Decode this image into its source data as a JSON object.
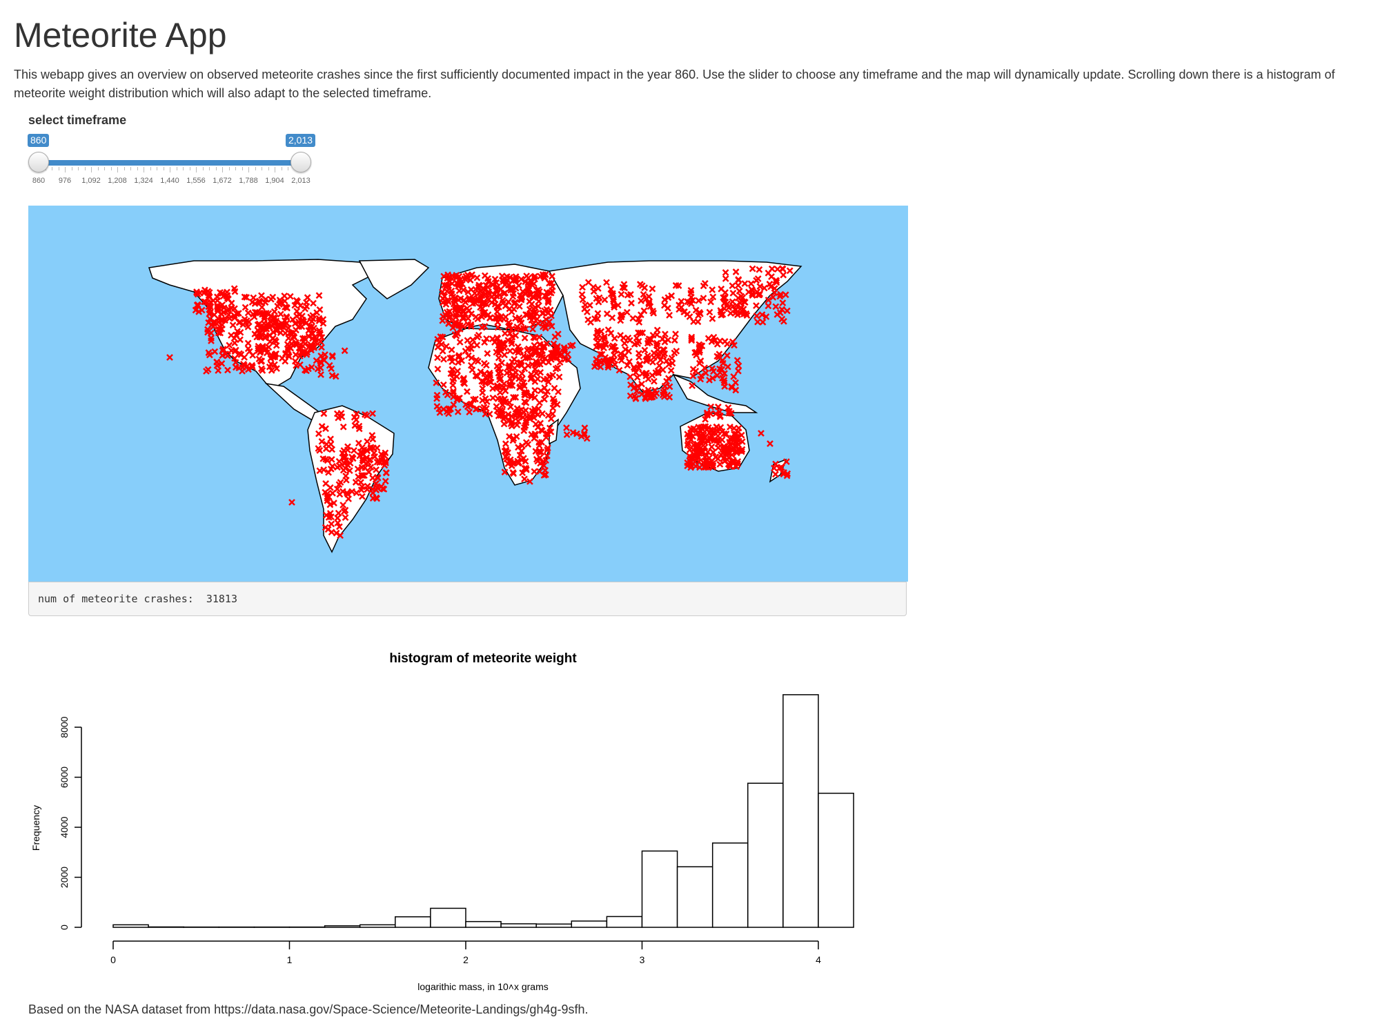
{
  "page": {
    "title": "Meteorite App",
    "description": "This webapp gives an overview on observed meteorite crashes since the first sufficiently documented impact in the year 860. Use the slider to choose any timeframe and the map will dynamically update. Scrolling down there is a histogram of meteorite weight distribution which will also adapt to the selected timeframe.",
    "footer": "Based on the NASA dataset from https://data.nasa.gov/Space-Science/Meteorite-Landings/gh4g-9sfh."
  },
  "slider": {
    "label": "select timeframe",
    "min": 860,
    "max": 2013,
    "from": 860,
    "to": 2013,
    "from_label": "860",
    "to_label": "2,013",
    "tick_labels": [
      "860",
      "976",
      "1,092",
      "1,208",
      "1,324",
      "1,440",
      "1,556",
      "1,672",
      "1,788",
      "1,904",
      "2,013"
    ],
    "accent_color": "#428bca"
  },
  "map": {
    "ocean_color": "#87cefa",
    "land_color": "#ffffff",
    "marker_color": "#ff0000",
    "marker_icon": "x-marker-icon"
  },
  "output": {
    "label": "num of meteorite crashes: ",
    "value": "31813"
  },
  "chart_data": {
    "type": "bar",
    "title": "histogram of meteorite weight",
    "xlabel": "logarithic mass, in 10^x grams",
    "ylabel": "Frequency",
    "bin_width": 0.2,
    "bin_starts": [
      0.0,
      0.2,
      0.4,
      0.6,
      0.8,
      1.0,
      1.2,
      1.4,
      1.6,
      1.8,
      2.0,
      2.2,
      2.4,
      2.6,
      2.8,
      3.0,
      3.2,
      3.4,
      3.6,
      3.8,
      4.0
    ],
    "values": [
      100,
      15,
      10,
      10,
      10,
      10,
      60,
      100,
      420,
      760,
      230,
      140,
      130,
      250,
      430,
      3050,
      2420,
      3370,
      5760,
      9300,
      5360
    ],
    "xlim": [
      0,
      4
    ],
    "x_ticks": [
      "0",
      "1",
      "2",
      "3",
      "4"
    ],
    "ylim": [
      0,
      8000
    ],
    "y_ticks": [
      "0",
      "2000",
      "4000",
      "6000",
      "8000"
    ],
    "grid": false,
    "bar_fill": "#ffffff",
    "bar_stroke": "#000000"
  }
}
